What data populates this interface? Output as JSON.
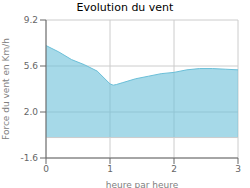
{
  "chart_data": {
    "type": "area",
    "title": "Evolution du vent",
    "xlabel": "heure par heure",
    "ylabel": "Force du vent en Km/h",
    "x": [
      0,
      0.2,
      0.4,
      0.6,
      0.8,
      1.0,
      1.05,
      1.1,
      1.2,
      1.4,
      1.6,
      1.8,
      2.0,
      2.2,
      2.4,
      2.6,
      2.8,
      3.0
    ],
    "values": [
      7.2,
      6.7,
      6.1,
      5.7,
      5.2,
      4.2,
      4.1,
      4.15,
      4.3,
      4.6,
      4.8,
      5.0,
      5.1,
      5.3,
      5.4,
      5.4,
      5.35,
      5.3
    ],
    "color": "#6bbfd8",
    "baseline": 0.0,
    "xlim": [
      0,
      3
    ],
    "ylim": [
      -1.6,
      9.2
    ],
    "xticks": [
      0,
      1,
      2,
      3
    ],
    "yticks": [
      -1.6,
      {
        "value": 2.0,
        "label": "2.0"
      },
      5.6,
      9.2
    ],
    "grid": true
  }
}
